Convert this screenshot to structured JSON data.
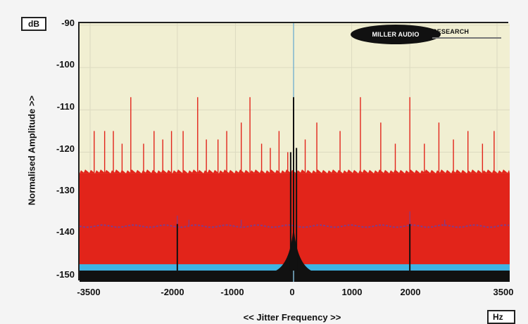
{
  "units": {
    "y": "dB",
    "x": "Hz"
  },
  "logo": {
    "left_text": "MILLER AUDIO",
    "right_text": "RESEARCH"
  },
  "chart_data": {
    "type": "line",
    "xlabel": "<< Jitter Frequency >>",
    "ylabel": "Normalised Amplitude >>",
    "xlim": [
      -3500,
      3500
    ],
    "ylim": [
      -150,
      -90
    ],
    "x_ticks": [
      "-3500",
      "-2000",
      "-1000",
      "0",
      "1000",
      "2000",
      "3500"
    ],
    "x_tick_values": [
      -3500,
      -2000,
      -1000,
      0,
      1000,
      2000,
      3500
    ],
    "y_ticks": [
      "-90",
      "-100",
      "-110",
      "-120",
      "-130",
      "-140",
      "-150"
    ],
    "y_tick_values": [
      -90,
      -100,
      -110,
      -120,
      -130,
      -140,
      -150
    ],
    "grid": true,
    "colors": {
      "plot_bg": "#f1efd2",
      "red": "#e2241a",
      "purple": "#7f3d8a",
      "blue": "#3fb3e3",
      "black": "#111111",
      "centre_line": "#7fb6cf"
    },
    "series": [
      {
        "color": "red",
        "noise_floor_top": -125,
        "base": -150,
        "peaks": [
          {
            "x": -3430,
            "y": -115
          },
          {
            "x": -3250,
            "y": -115
          },
          {
            "x": -3100,
            "y": -115
          },
          {
            "x": -2950,
            "y": -118
          },
          {
            "x": -2800,
            "y": -107
          },
          {
            "x": -2580,
            "y": -118
          },
          {
            "x": -2400,
            "y": -115
          },
          {
            "x": -2250,
            "y": -117
          },
          {
            "x": -2100,
            "y": -115
          },
          {
            "x": -1900,
            "y": -115
          },
          {
            "x": -1650,
            "y": -107
          },
          {
            "x": -1500,
            "y": -117
          },
          {
            "x": -1300,
            "y": -117
          },
          {
            "x": -1150,
            "y": -115
          },
          {
            "x": -900,
            "y": -113
          },
          {
            "x": -750,
            "y": -107
          },
          {
            "x": -550,
            "y": -118
          },
          {
            "x": -400,
            "y": -119
          },
          {
            "x": -250,
            "y": -115
          },
          {
            "x": -100,
            "y": -120
          },
          {
            "x": 200,
            "y": -117
          },
          {
            "x": 400,
            "y": -113
          },
          {
            "x": 800,
            "y": -115
          },
          {
            "x": 1150,
            "y": -107
          },
          {
            "x": 1500,
            "y": -113
          },
          {
            "x": 1750,
            "y": -118
          },
          {
            "x": 2000,
            "y": -107
          },
          {
            "x": 2250,
            "y": -118
          },
          {
            "x": 2500,
            "y": -113
          },
          {
            "x": 2750,
            "y": -117
          },
          {
            "x": 3000,
            "y": -115
          },
          {
            "x": 3250,
            "y": -118
          },
          {
            "x": 3450,
            "y": -115
          }
        ]
      },
      {
        "color": "purple",
        "level": -137.5,
        "base": -150,
        "peaks": [
          {
            "x": -2000,
            "y": -135
          },
          {
            "x": -1800,
            "y": -136
          },
          {
            "x": -900,
            "y": -136
          },
          {
            "x": 2000,
            "y": -134
          },
          {
            "x": 2600,
            "y": -136
          }
        ]
      },
      {
        "color": "black",
        "floor": -148,
        "peaks": [
          {
            "x": 0,
            "y": -107
          },
          {
            "x": 50,
            "y": -119
          },
          {
            "x": -50,
            "y": -120
          },
          {
            "x": -2000,
            "y": -137
          },
          {
            "x": 2000,
            "y": -137
          }
        ]
      },
      {
        "color": "blue",
        "level": -146.5,
        "base": -150
      }
    ]
  }
}
